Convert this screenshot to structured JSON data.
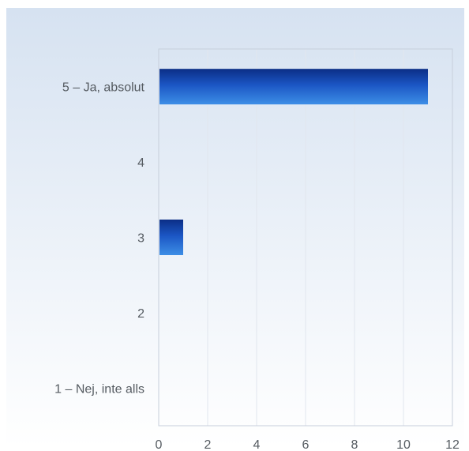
{
  "chart_data": {
    "type": "bar",
    "orientation": "horizontal",
    "categories": [
      "5 – Ja, absolut",
      "4",
      "3",
      "2",
      "1 – Nej, inte alls"
    ],
    "values": [
      11,
      0,
      1,
      0,
      0
    ],
    "xlim": [
      0,
      12
    ],
    "xticks": [
      "0",
      "2",
      "4",
      "6",
      "8",
      "10",
      "12"
    ],
    "grid": true,
    "legend": "none",
    "colors": {
      "bar_dark": "#0b2e86",
      "bar_mid": "#1b56c4",
      "bar_light": "#3d8ee6",
      "plot_bg_top": "#d8e3f1",
      "plot_bg_bottom": "#ffffff",
      "grid": "#e1e6ee",
      "axis": "#c7cfdb"
    }
  }
}
